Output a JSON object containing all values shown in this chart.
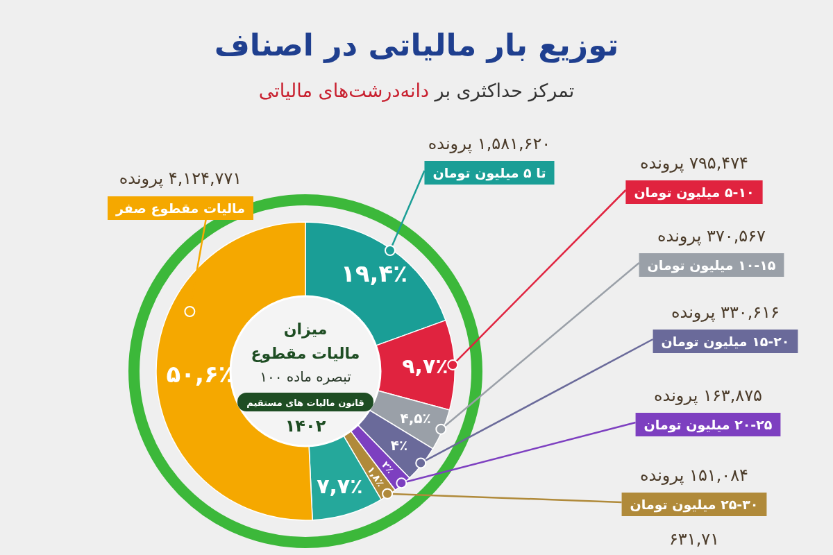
{
  "chart_data": {
    "type": "donut",
    "title": "توزیع بار مالیاتی در اصناف",
    "subtitle": "تمرکز حداکثری بر دانه‌درشت‌های مالیاتی",
    "categories": [
      "تا ۵ میلیون تومان",
      "۵-۱۰ میلیون تومان",
      "۱۰-۱۵ میلیون تومان",
      "۱۵-۲۰ میلیون تومان",
      "۲۰-۲۵ میلیون تومان",
      "۲۵-۳۰ میلیون تومان",
      null,
      "مالیات مقطوع صفر"
    ],
    "values": [
      19.4,
      9.7,
      4.5,
      4,
      2,
      1.8,
      7.7,
      50.6
    ],
    "colors": [
      "#1a9e96",
      "#e0233f",
      "#9aa0a8",
      "#6a6a9a",
      "#7d3fc0",
      "#b08a3a",
      "#25a89b",
      "#f5a800"
    ],
    "value_labels": [
      "۱۹,۴٪",
      "۹,۷٪",
      "۴,۵٪",
      "۴٪",
      "۲٪",
      "۱,۸٪",
      "۷,۷٪",
      "۵۰,۶٪"
    ],
    "annotations": [
      "۱,۵۸۱,۶۲۰ پرونده",
      "۷۹۵,۴۷۴ پرونده",
      "۳۷۰,۵۶۷ پرونده",
      "۳۳۰,۶۱۶ پرونده",
      "۱۶۳,۸۷۵ پرونده",
      "۱۵۱,۰۸۴ پرونده",
      "۶۳۱,۷۱",
      "۴,۱۲۴,۷۷۱ پرونده",
      "میزان",
      "مالیات مقطوع",
      "تبصره ماده ۱۰۰",
      "قانون مالیات های مستقیم",
      "۱۴۰۲"
    ]
  }
}
